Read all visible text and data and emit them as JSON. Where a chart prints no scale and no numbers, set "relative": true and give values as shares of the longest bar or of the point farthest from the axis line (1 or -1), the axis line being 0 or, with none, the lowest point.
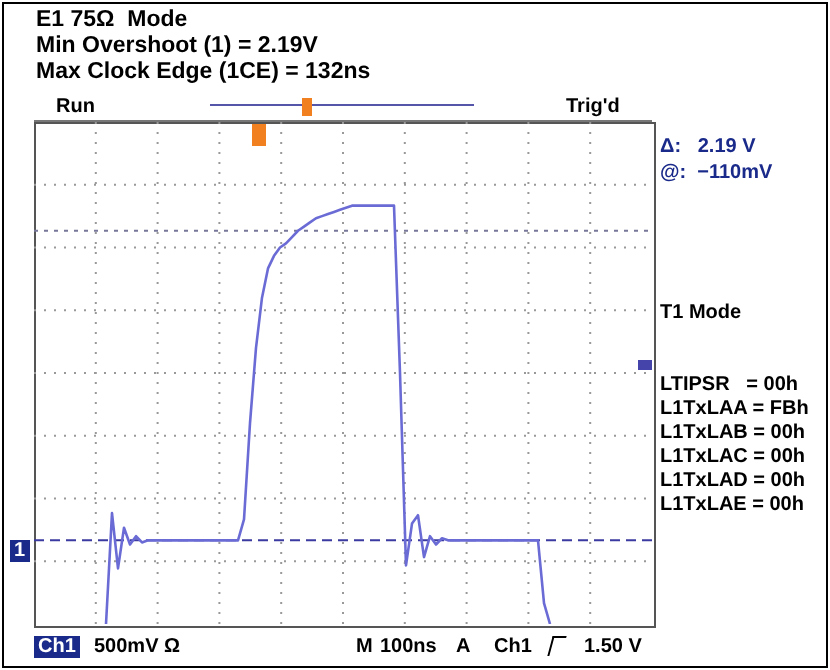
{
  "chart_data": {
    "type": "line",
    "title": "E1 75Ω  Mode",
    "subtitle": "Min Overshoot (1) = 2.19V\nMax Clock Edge (1CE) = 132ns",
    "relative": true,
    "grid": true,
    "legend": false,
    "marker": "none",
    "line_style": "solid",
    "categories": [
      null,
      null,
      null,
      null,
      null,
      null,
      null,
      null,
      null,
      null,
      null,
      null,
      null,
      null,
      null,
      null,
      null,
      null,
      null,
      null,
      null,
      null,
      null,
      null,
      null,
      null,
      null,
      null,
      null,
      null,
      null,
      null,
      null,
      null,
      null,
      null,
      null,
      null,
      null,
      null,
      null,
      null,
      null,
      null,
      null,
      null,
      null,
      null,
      null,
      null,
      null,
      null,
      null,
      null,
      null,
      null,
      null,
      null,
      null,
      null,
      null,
      null,
      null,
      null,
      null,
      null,
      null,
      null,
      null,
      null,
      null,
      null,
      null,
      null,
      null,
      null,
      null,
      null,
      null,
      null,
      null,
      null,
      null,
      null,
      null,
      null,
      null,
      null,
      null,
      null,
      null,
      null,
      null,
      null,
      null,
      null,
      null,
      null,
      null,
      null,
      null,
      null,
      null,
      null
    ],
    "series": [
      {
        "color": "#6b6bd6",
        "values": [
          null,
          null,
          null,
          null,
          null,
          null,
          null,
          null,
          null,
          null,
          null,
          null,
          0,
          0.265,
          0.133,
          0.23,
          0.19,
          0.21,
          0.195,
          0.2,
          0.2,
          0.2,
          0.2,
          0.2,
          0.2,
          0.2,
          0.2,
          0.2,
          0.2,
          0.2,
          0.2,
          0.2,
          0.2,
          0.2,
          0.2,
          0.25,
          0.48,
          0.66,
          0.78,
          0.85,
          0.88,
          0.9,
          0.91,
          0.925,
          0.94,
          0.95,
          0.96,
          0.97,
          0.975,
          0.98,
          0.985,
          0.99,
          0.995,
          1,
          1,
          1,
          1,
          1,
          1,
          1,
          1,
          0.6,
          0.14,
          0.24,
          0.26,
          0.16,
          0.21,
          0.19,
          0.205,
          0.2,
          0.2,
          0.2,
          0.2,
          0.2,
          0.2,
          0.2,
          0.2,
          0.2,
          0.2,
          0.2,
          0.2,
          0.2,
          0.2,
          0.2,
          0.2,
          0.05,
          0,
          null,
          null,
          null,
          null,
          null,
          null,
          null,
          null,
          null,
          null,
          null,
          null,
          null,
          null,
          null,
          null,
          null
        ]
      }
    ],
    "ref_lines": [
      {
        "axis": "y",
        "value": 0.2,
        "color": "#3a3aa0",
        "line_style": "dashed"
      },
      {
        "axis": "y",
        "value": 0.94,
        "color": "#777799",
        "line_style": "dotted"
      }
    ],
    "annotations": [
      "Run",
      "Trig'd",
      "Δ:   2.19 V",
      "@:  −110mV",
      "T1 Mode",
      "LTIPSR   = 00h",
      "L1TxLAA = FBh",
      "L1TxLAB = 00h",
      "L1TxLAC = 00h",
      "L1TxLAD = 00h",
      "L1TxLAE = 00h",
      "1",
      "Ch1",
      "500mV Ω",
      "M",
      "100ns",
      "A",
      "Ch1",
      "1.50 V"
    ]
  }
}
